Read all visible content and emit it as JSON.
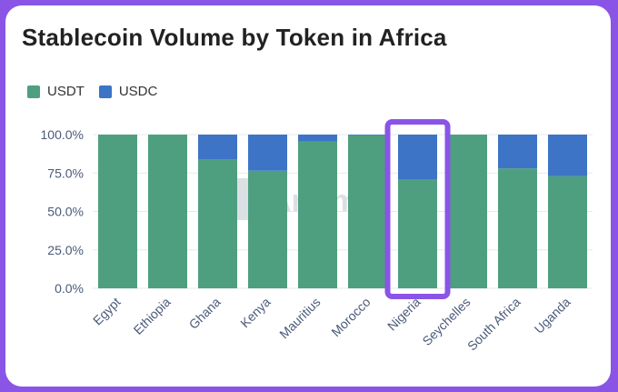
{
  "chart_data": {
    "type": "bar",
    "stacked": true,
    "title": "Stablecoin Volume by Token in Africa",
    "watermark": "Artemis",
    "categories": [
      "Egypt",
      "Ethiopia",
      "Ghana",
      "Kenya",
      "Mauritius",
      "Morocco",
      "Nigeria",
      "Seychelles",
      "South Africa",
      "Uganda"
    ],
    "series": [
      {
        "name": "USDT",
        "color": "#4e9f80",
        "values": [
          100,
          100,
          84,
          76.5,
          95.5,
          99.5,
          71,
          100,
          78,
          73
        ]
      },
      {
        "name": "USDC",
        "color": "#3d74c6",
        "values": [
          0,
          0,
          16,
          23.5,
          4.5,
          0.5,
          29,
          0,
          22,
          27
        ]
      }
    ],
    "yticks": [
      "0.0%",
      "25.0%",
      "50.0%",
      "75.0%",
      "100.0%"
    ],
    "ylim": [
      0,
      100
    ],
    "highlight": {
      "category": "Nigeria",
      "color": "#8a55e6"
    }
  }
}
